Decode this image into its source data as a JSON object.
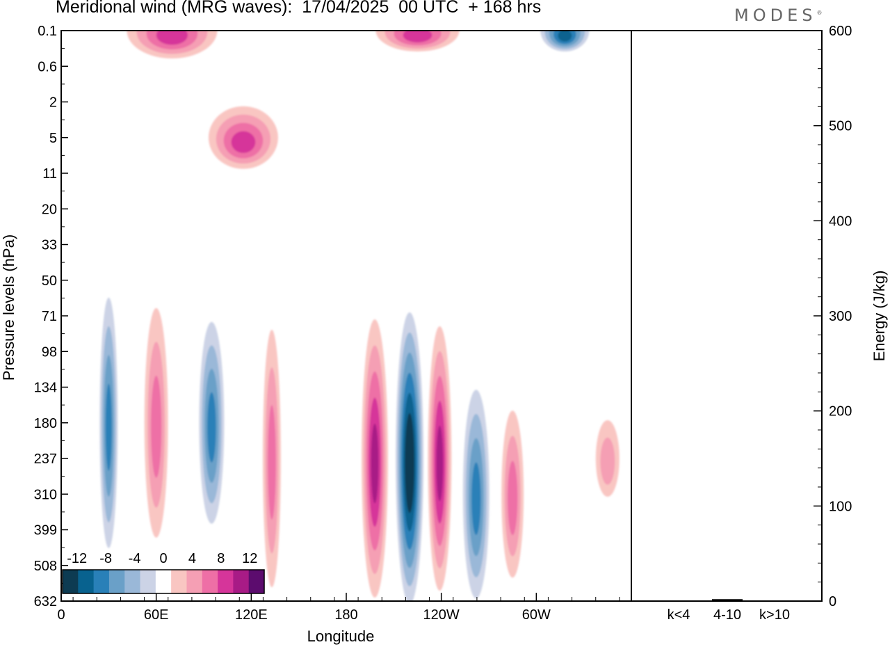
{
  "title": "Meridional wind (MRG waves):  17/04/2025  00 UTC  + 168 hrs",
  "logo": "MODES",
  "chart_data": [
    {
      "type": "heatmap",
      "xlabel": "Longitude",
      "ylabel": "Pressure levels (hPa)",
      "x_ticks": [
        "0",
        "60E",
        "120E",
        "180",
        "120W",
        "60W"
      ],
      "y_ticks": [
        "0.1",
        "0.6",
        "2",
        "5",
        "11",
        "20",
        "33",
        "50",
        "71",
        "98",
        "134",
        "180",
        "237",
        "310",
        "399",
        "508",
        "632"
      ],
      "colorbar": {
        "labels": [
          "-12",
          "-8",
          "-4",
          "0",
          "4",
          "8",
          "12"
        ],
        "levels": [
          -14,
          -12,
          -10,
          -8,
          -6,
          -4,
          -2,
          2,
          4,
          6,
          8,
          10,
          12,
          14
        ],
        "colors": [
          "#0d3b52",
          "#08628f",
          "#2980b8",
          "#6aa0c8",
          "#9ab8d8",
          "#ccd3e6",
          "#ffffff",
          "#f9c6c2",
          "#f59fb4",
          "#ee6fa6",
          "#d6359a",
          "#a81b86",
          "#5c0c6e"
        ]
      },
      "features": [
        {
          "lon": 30,
          "level": "180",
          "value": -8
        },
        {
          "lon": 60,
          "level": "180",
          "value": 6
        },
        {
          "lon": 95,
          "level": "180",
          "value": -8
        },
        {
          "lon": 133,
          "level": "237",
          "value": 6
        },
        {
          "lon": 198,
          "level": "237",
          "value": 10
        },
        {
          "lon": 220,
          "level": "237",
          "value": -14
        },
        {
          "lon": 239,
          "level": "237",
          "value": 10
        },
        {
          "lon": 262,
          "level": "310",
          "value": -8
        },
        {
          "lon": 285,
          "level": "310",
          "value": 6
        },
        {
          "lon": 345,
          "level": "237",
          "value": 4
        },
        {
          "lon": 70,
          "level": "0.1",
          "value": 8
        },
        {
          "lon": 115,
          "level": "5",
          "value": 8
        },
        {
          "lon": 225,
          "level": "0.1",
          "value": 8
        },
        {
          "lon": 318,
          "level": "0.1",
          "value": -10
        }
      ]
    },
    {
      "type": "bar",
      "ylabel": "Energy (J/kg)",
      "categories": [
        "k<4",
        "4-10",
        "k>10"
      ],
      "values": [
        0,
        2,
        0
      ],
      "ylim": [
        0,
        600
      ],
      "y_ticks": [
        "0",
        "100",
        "200",
        "300",
        "400",
        "500",
        "600"
      ]
    }
  ]
}
